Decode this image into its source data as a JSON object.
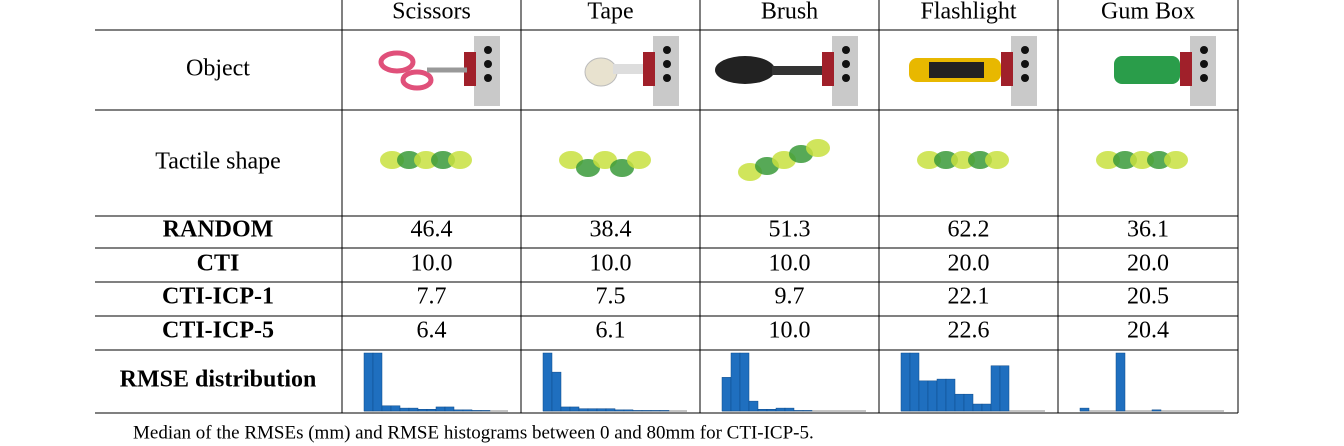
{
  "table": {
    "columns": [
      "Scissors",
      "Tape",
      "Brush",
      "Flashlight",
      "Gum Box"
    ],
    "rows": [
      {
        "label": "Object"
      },
      {
        "label": "Tactile shape"
      },
      {
        "label": "RANDOM",
        "cells": [
          "46.4",
          "38.4",
          "51.3",
          "62.2",
          "36.1"
        ]
      },
      {
        "label": "CTI",
        "cells": [
          "10.0",
          "10.0",
          "10.0",
          "20.0",
          "20.0"
        ]
      },
      {
        "label": "CTI-ICP-1",
        "cells": [
          "7.7",
          "7.5",
          "9.7",
          "22.1",
          "20.5"
        ]
      },
      {
        "label": "CTI-ICP-5",
        "cells": [
          "6.4",
          "6.1",
          "10.0",
          "22.6",
          "20.4"
        ]
      },
      {
        "label": "RMSE distribution"
      }
    ],
    "histograms": [
      {
        "values": [
          100,
          100,
          9,
          9,
          5,
          5,
          3,
          3,
          7,
          7,
          2,
          2,
          1,
          1,
          0,
          0
        ],
        "color": "#1f6fbf"
      },
      {
        "values": [
          100,
          67,
          7,
          7,
          4,
          4,
          4,
          4,
          2,
          2,
          1,
          1,
          1,
          1,
          0,
          0
        ],
        "color": "#1f6fbf"
      },
      {
        "values": [
          58,
          100,
          100,
          17,
          3,
          3,
          5,
          5,
          1,
          1,
          0,
          0,
          0,
          0,
          0,
          0
        ],
        "color": "#1f6fbf"
      },
      {
        "values": [
          100,
          100,
          52,
          52,
          55,
          55,
          29,
          29,
          12,
          12,
          78,
          78,
          0,
          0,
          0,
          0
        ],
        "color": "#1f6fbf"
      },
      {
        "values": [
          5,
          0,
          0,
          0,
          100,
          0,
          0,
          0,
          2,
          0,
          0,
          0,
          0,
          0,
          0,
          0
        ],
        "color": "#1f6fbf"
      }
    ]
  },
  "caption": "Median of the RMSEs (mm) and RMSE histograms between 0 and 80mm for CTI-ICP-5."
}
